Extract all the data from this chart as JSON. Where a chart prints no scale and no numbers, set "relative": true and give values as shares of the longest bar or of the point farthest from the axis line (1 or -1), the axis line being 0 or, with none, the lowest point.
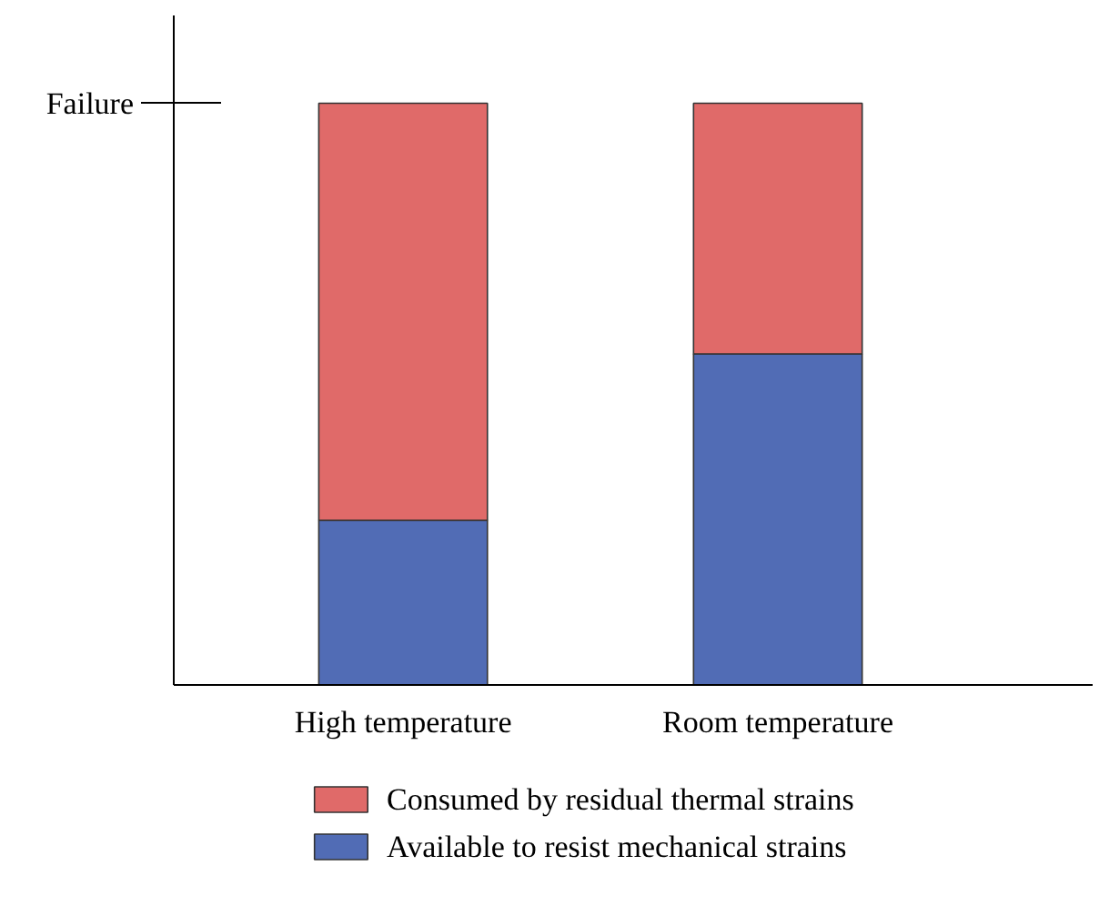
{
  "chart_data": {
    "type": "bar",
    "stacked": true,
    "relative": true,
    "categories": [
      "High temperature",
      "Room temperature"
    ],
    "series": [
      {
        "name": "Available to resist mechanical strains",
        "color": "#516cb5",
        "values": [
          0.283,
          0.569
        ]
      },
      {
        "name": "Consumed by residual thermal strains",
        "color": "#e06a69",
        "values": [
          0.717,
          0.431
        ]
      }
    ],
    "annotations": [
      "Failure"
    ],
    "legend": "bottom",
    "grid": false
  }
}
